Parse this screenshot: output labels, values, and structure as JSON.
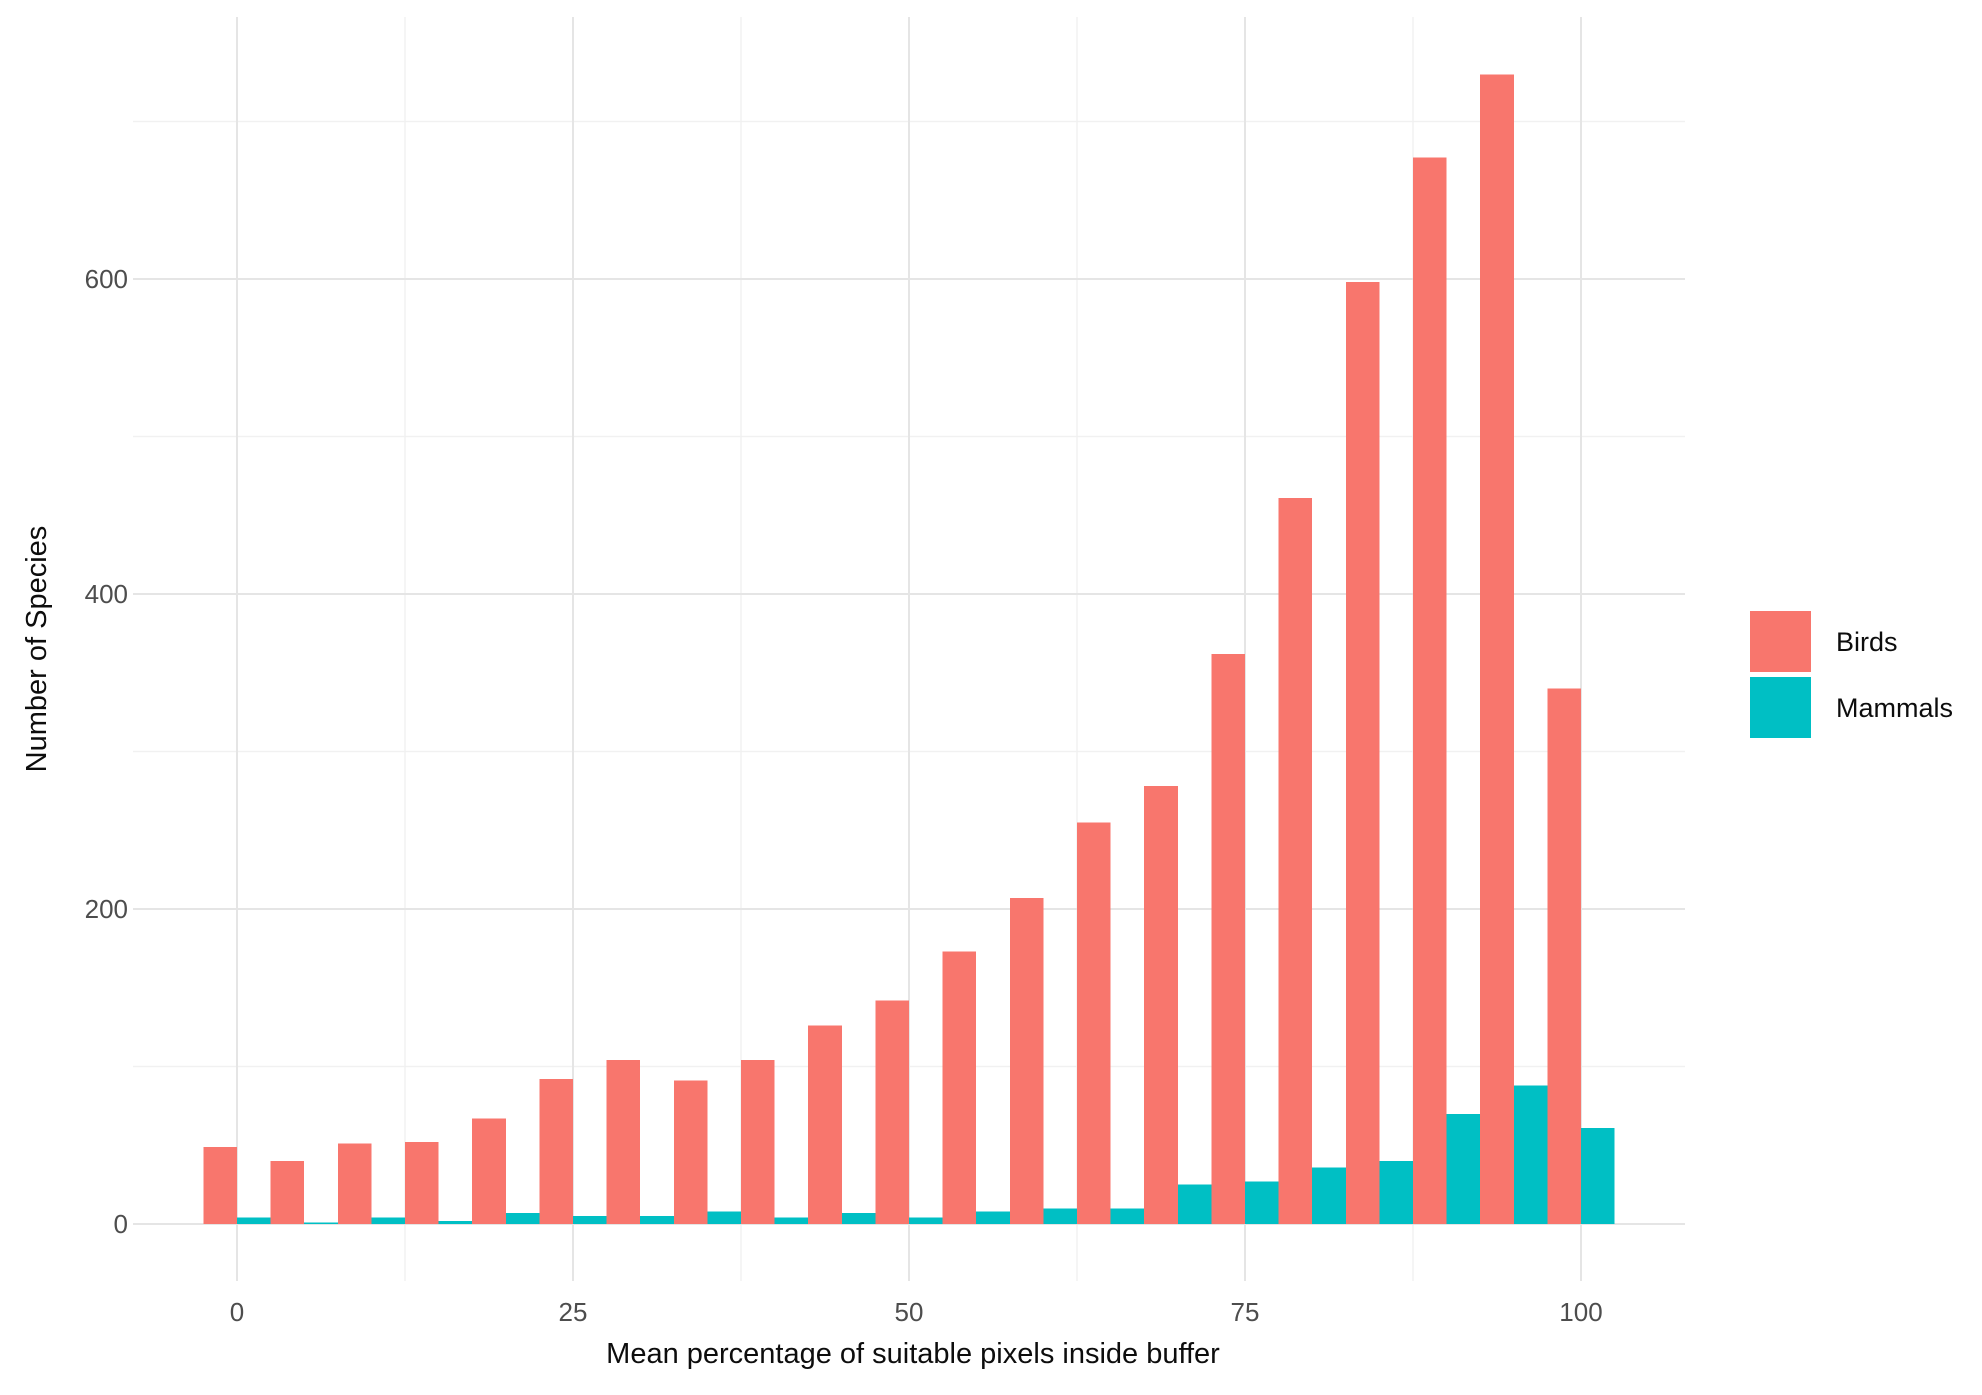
{
  "chart_data": {
    "type": "bar",
    "title": "",
    "xlabel": "Mean percentage of suitable pixels inside buffer",
    "ylabel": "Number of Species",
    "categories": [
      0,
      5,
      10,
      15,
      20,
      25,
      30,
      35,
      40,
      45,
      50,
      55,
      60,
      65,
      70,
      75,
      80,
      85,
      90,
      95,
      100
    ],
    "series": [
      {
        "name": "Birds",
        "color": "#F8766D",
        "values": [
          49,
          40,
          51,
          52,
          67,
          92,
          104,
          91,
          104,
          126,
          142,
          173,
          207,
          255,
          278,
          362,
          461,
          598,
          677,
          730,
          340
        ]
      },
      {
        "name": "Mammals",
        "color": "#00BFC4",
        "values": [
          4,
          1,
          4,
          2,
          7,
          5,
          5,
          8,
          4,
          7,
          4,
          8,
          10,
          10,
          25,
          27,
          36,
          40,
          70,
          88,
          61
        ]
      }
    ],
    "x_ticks": [
      0,
      25,
      50,
      75,
      100
    ],
    "x_minor_gridlines": [
      12.5,
      37.5,
      62.5,
      87.5
    ],
    "y_ticks": [
      0,
      200,
      400,
      600
    ],
    "y_minor_gridlines": [
      100,
      300,
      500,
      700
    ],
    "xlim": [
      -7.75,
      107.75
    ],
    "ylim": [
      0,
      766
    ],
    "bar_group_width": 5,
    "dodged": true,
    "grid": true,
    "legend_position": "right"
  },
  "colors": {
    "background": "#ffffff",
    "birds": "#F8766D",
    "mammals": "#00BFC4",
    "grid_major": "#e5e5e5",
    "grid_minor": "#f1f1f1",
    "tick_label": "#4d4d4d",
    "axis_title": "#0d0d0d",
    "legend_text": "#0d0d0d"
  }
}
